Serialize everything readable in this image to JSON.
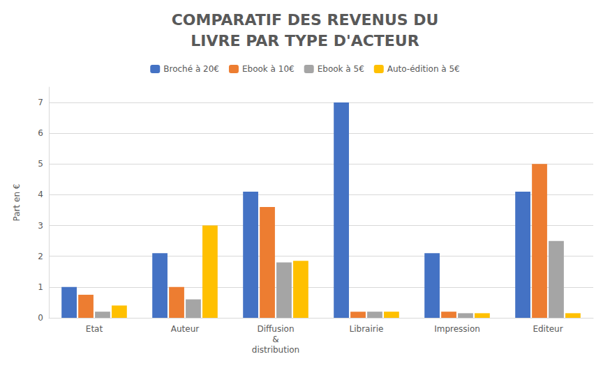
{
  "chart_data": {
    "type": "bar",
    "title": "COMPARATIF DES REVENUS DU\nLIVRE PAR TYPE D'ACTEUR",
    "categories": [
      "Etat",
      "Auteur",
      "Diffusion\n&\ndistribution",
      "Librairie",
      "Impression",
      "Editeur"
    ],
    "series": [
      {
        "name": "Broché à 20€",
        "color": "#4472c4",
        "values": [
          1.0,
          2.1,
          4.1,
          7.0,
          2.1,
          4.1
        ]
      },
      {
        "name": "Ebook à 10€",
        "color": "#ed7d31",
        "values": [
          0.75,
          1.0,
          3.6,
          0.2,
          0.2,
          5.0
        ]
      },
      {
        "name": "Ebook à 5€",
        "color": "#a5a5a5",
        "values": [
          0.2,
          0.6,
          1.8,
          0.2,
          0.15,
          2.5
        ]
      },
      {
        "name": "Auto-édition à 5€",
        "color": "#ffc000",
        "values": [
          0.4,
          3.0,
          1.85,
          0.2,
          0.15,
          0.15
        ]
      }
    ],
    "ylabel": "Part en €",
    "ylim": [
      0,
      7.5
    ],
    "yticks": [
      0,
      1,
      2,
      3,
      4,
      5,
      6,
      7
    ],
    "grid": true,
    "legend": "top"
  }
}
